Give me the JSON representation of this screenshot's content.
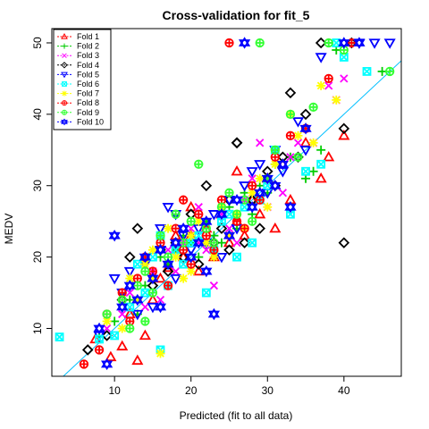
{
  "chart_data": {
    "type": "scatter",
    "title": "Cross-validation for fit_5",
    "xlabel": "Predicted (fit to all data)",
    "ylabel": "MEDV",
    "xlim": [
      1.8,
      47.5
    ],
    "ylim": [
      3.3,
      52.0
    ],
    "xticks": [
      10,
      20,
      30,
      40
    ],
    "yticks": [
      10,
      20,
      30,
      40,
      50
    ],
    "grid": false,
    "legend_position": "top-left",
    "reference_line": {
      "x": [
        1.8,
        47.5
      ],
      "y": [
        1.8,
        47.5
      ],
      "color": "#00BFFF"
    },
    "series": [
      {
        "name": "Fold 1",
        "color": "#FF0000",
        "marker": "triangle",
        "points": [
          [
            7.5,
            8.5
          ],
          [
            9.5,
            6.0
          ],
          [
            11,
            7.5
          ],
          [
            12,
            12
          ],
          [
            13,
            5.5
          ],
          [
            14,
            9.0
          ],
          [
            15,
            14
          ],
          [
            16,
            17
          ],
          [
            17,
            18.5
          ],
          [
            18,
            21
          ],
          [
            19,
            20
          ],
          [
            20,
            23
          ],
          [
            21,
            18
          ],
          [
            22,
            24
          ],
          [
            23,
            20
          ],
          [
            24,
            26
          ],
          [
            25,
            22
          ],
          [
            26,
            25
          ],
          [
            27,
            23
          ],
          [
            28,
            28
          ],
          [
            29,
            26
          ],
          [
            30,
            31
          ],
          [
            31,
            24
          ],
          [
            32,
            33
          ],
          [
            33,
            28
          ],
          [
            35,
            36
          ],
          [
            37,
            31
          ],
          [
            38,
            34
          ],
          [
            40,
            37
          ],
          [
            26,
            32
          ],
          [
            20,
            27
          ],
          [
            18,
            23
          ]
        ]
      },
      {
        "name": "Fold 2",
        "color": "#00CC00",
        "marker": "plus",
        "points": [
          [
            8,
            9
          ],
          [
            10,
            11
          ],
          [
            12,
            14
          ],
          [
            13,
            12
          ],
          [
            14,
            16
          ],
          [
            15,
            17
          ],
          [
            16,
            20
          ],
          [
            17,
            19
          ],
          [
            18,
            21
          ],
          [
            19,
            23
          ],
          [
            20,
            22
          ],
          [
            21,
            20
          ],
          [
            22,
            25
          ],
          [
            23,
            23
          ],
          [
            24,
            22
          ],
          [
            25,
            27
          ],
          [
            26,
            24
          ],
          [
            27,
            29
          ],
          [
            28,
            26
          ],
          [
            29,
            30
          ],
          [
            30,
            29
          ],
          [
            31,
            33
          ],
          [
            33,
            34
          ],
          [
            35,
            31
          ],
          [
            36,
            32
          ],
          [
            38,
            50
          ],
          [
            39,
            49
          ],
          [
            41,
            50
          ],
          [
            45,
            46
          ],
          [
            37,
            35
          ]
        ]
      },
      {
        "name": "Fold 3",
        "color": "#FF00FF",
        "marker": "cross",
        "points": [
          [
            9,
            10
          ],
          [
            11,
            12
          ],
          [
            12,
            15
          ],
          [
            14,
            13
          ],
          [
            15,
            18
          ],
          [
            16,
            14
          ],
          [
            17,
            21
          ],
          [
            18,
            18
          ],
          [
            19,
            22
          ],
          [
            20,
            24
          ],
          [
            21,
            22
          ],
          [
            22,
            21
          ],
          [
            23,
            16
          ],
          [
            24,
            26
          ],
          [
            25,
            24
          ],
          [
            26,
            22
          ],
          [
            27,
            28
          ],
          [
            28,
            31
          ],
          [
            29,
            36
          ],
          [
            30,
            27
          ],
          [
            32,
            29
          ],
          [
            33,
            34
          ],
          [
            34,
            36
          ],
          [
            36,
            36
          ],
          [
            38,
            44
          ],
          [
            39,
            42
          ],
          [
            40,
            45
          ],
          [
            21,
            27
          ]
        ]
      },
      {
        "name": "Fold 4",
        "color": "#000000",
        "marker": "diamond",
        "points": [
          [
            6.5,
            7
          ],
          [
            9,
            9
          ],
          [
            11,
            14
          ],
          [
            12,
            20
          ],
          [
            13,
            24
          ],
          [
            15,
            16
          ],
          [
            16,
            21
          ],
          [
            17,
            18
          ],
          [
            18,
            22
          ],
          [
            19,
            20
          ],
          [
            20,
            26
          ],
          [
            21,
            19
          ],
          [
            22,
            30
          ],
          [
            23,
            22
          ],
          [
            24,
            24
          ],
          [
            25,
            21
          ],
          [
            26,
            36
          ],
          [
            27,
            22
          ],
          [
            28,
            28
          ],
          [
            29,
            24
          ],
          [
            30,
            32
          ],
          [
            31,
            30
          ],
          [
            32,
            34
          ],
          [
            33,
            43
          ],
          [
            34,
            34
          ],
          [
            35,
            40
          ],
          [
            37,
            50
          ],
          [
            40,
            22
          ],
          [
            40,
            38
          ],
          [
            41,
            50
          ],
          [
            26,
            36
          ],
          [
            25,
            28
          ]
        ]
      },
      {
        "name": "Fold 5",
        "color": "#0000FF",
        "marker": "inv-triangle",
        "points": [
          [
            8,
            9
          ],
          [
            10,
            17
          ],
          [
            11,
            15
          ],
          [
            12,
            18
          ],
          [
            13,
            12
          ],
          [
            14,
            19
          ],
          [
            15,
            13
          ],
          [
            16,
            21
          ],
          [
            17,
            27
          ],
          [
            18,
            26
          ],
          [
            19,
            23
          ],
          [
            20,
            21
          ],
          [
            21,
            24
          ],
          [
            22,
            22
          ],
          [
            23,
            26
          ],
          [
            24,
            20
          ],
          [
            25,
            28
          ],
          [
            26,
            24
          ],
          [
            27,
            30
          ],
          [
            28,
            32
          ],
          [
            29,
            33
          ],
          [
            30,
            29
          ],
          [
            31,
            35
          ],
          [
            32,
            32
          ],
          [
            34,
            39
          ],
          [
            35,
            35
          ],
          [
            37,
            48
          ],
          [
            42,
            50
          ],
          [
            44,
            50
          ],
          [
            46,
            50
          ],
          [
            18,
            17
          ],
          [
            16,
            24
          ]
        ]
      },
      {
        "name": "Fold 6",
        "color": "#00FFFF",
        "marker": "square-x",
        "points": [
          [
            2.8,
            8.8
          ],
          [
            8,
            8.5
          ],
          [
            10,
            9
          ],
          [
            12,
            13
          ],
          [
            13,
            19
          ],
          [
            14,
            15
          ],
          [
            15,
            20
          ],
          [
            16,
            23
          ],
          [
            17,
            16
          ],
          [
            18,
            21
          ],
          [
            19,
            19
          ],
          [
            20,
            22
          ],
          [
            21,
            23
          ],
          [
            22,
            15
          ],
          [
            23,
            21
          ],
          [
            24,
            25
          ],
          [
            25,
            26
          ],
          [
            26,
            20
          ],
          [
            27,
            27
          ],
          [
            28,
            22
          ],
          [
            29,
            28
          ],
          [
            30,
            30
          ],
          [
            31,
            35
          ],
          [
            33,
            26
          ],
          [
            35,
            32
          ],
          [
            37,
            33
          ],
          [
            39,
            50
          ],
          [
            40,
            48
          ],
          [
            43,
            46
          ],
          [
            16,
            7
          ]
        ]
      },
      {
        "name": "Fold 7",
        "color": "#FFFF00",
        "marker": "asterisk",
        "points": [
          [
            9,
            11
          ],
          [
            11,
            10
          ],
          [
            12,
            17
          ],
          [
            13,
            14
          ],
          [
            14,
            19
          ],
          [
            15,
            21
          ],
          [
            16,
            6.5
          ],
          [
            17,
            24
          ],
          [
            18,
            20
          ],
          [
            19,
            17
          ],
          [
            20,
            23
          ],
          [
            21,
            25
          ],
          [
            22,
            22
          ],
          [
            23,
            20
          ],
          [
            24,
            27
          ],
          [
            25,
            23
          ],
          [
            26,
            26
          ],
          [
            27,
            24
          ],
          [
            28,
            29
          ],
          [
            29,
            31
          ],
          [
            30,
            27
          ],
          [
            31,
            33
          ],
          [
            33,
            40
          ],
          [
            34,
            37
          ],
          [
            36,
            36
          ],
          [
            37,
            44
          ],
          [
            39,
            42
          ],
          [
            15,
            17
          ],
          [
            20,
            18
          ]
        ]
      },
      {
        "name": "Fold 8",
        "color": "#FF0000",
        "marker": "circle-plus",
        "points": [
          [
            6,
            5
          ],
          [
            8,
            7
          ],
          [
            9,
            12
          ],
          [
            11,
            15
          ],
          [
            12,
            11
          ],
          [
            13,
            17
          ],
          [
            14,
            20
          ],
          [
            15,
            18
          ],
          [
            16,
            22
          ],
          [
            17,
            16
          ],
          [
            18,
            24
          ],
          [
            19,
            21
          ],
          [
            20,
            19
          ],
          [
            21,
            26
          ],
          [
            22,
            23
          ],
          [
            23,
            21
          ],
          [
            24,
            28
          ],
          [
            25,
            50
          ],
          [
            26,
            25
          ],
          [
            27,
            24
          ],
          [
            28,
            30
          ],
          [
            29,
            28
          ],
          [
            30,
            31
          ],
          [
            31,
            34
          ],
          [
            33,
            37
          ],
          [
            35,
            38
          ],
          [
            38,
            45
          ],
          [
            41,
            50
          ],
          [
            19,
            28
          ]
        ]
      },
      {
        "name": "Fold 9",
        "color": "#33FF33",
        "marker": "circle-plus",
        "points": [
          [
            9,
            12
          ],
          [
            11,
            14
          ],
          [
            12,
            10
          ],
          [
            13,
            16
          ],
          [
            14,
            18
          ],
          [
            15,
            15
          ],
          [
            16,
            23
          ],
          [
            17,
            20
          ],
          [
            18,
            26
          ],
          [
            19,
            22
          ],
          [
            20,
            25
          ],
          [
            21,
            33
          ],
          [
            22,
            24
          ],
          [
            23,
            22
          ],
          [
            24,
            27
          ],
          [
            25,
            29
          ],
          [
            26,
            26
          ],
          [
            27,
            28
          ],
          [
            28,
            25
          ],
          [
            29,
            50
          ],
          [
            30,
            31
          ],
          [
            31,
            35
          ],
          [
            33,
            40
          ],
          [
            34,
            34
          ],
          [
            36,
            41
          ],
          [
            38,
            50
          ],
          [
            40,
            49
          ],
          [
            46,
            46
          ],
          [
            14,
            11
          ]
        ]
      },
      {
        "name": "Fold 10",
        "color": "#0000FF",
        "marker": "star-of-david",
        "points": [
          [
            8,
            10
          ],
          [
            9,
            5
          ],
          [
            10,
            23
          ],
          [
            11,
            13
          ],
          [
            12,
            16
          ],
          [
            13,
            14
          ],
          [
            14,
            20
          ],
          [
            15,
            17
          ],
          [
            16,
            21
          ],
          [
            17,
            19
          ],
          [
            18,
            22
          ],
          [
            19,
            24
          ],
          [
            20,
            20
          ],
          [
            21,
            22
          ],
          [
            22,
            25
          ],
          [
            23,
            12
          ],
          [
            24,
            26
          ],
          [
            25,
            23
          ],
          [
            26,
            28
          ],
          [
            27,
            50
          ],
          [
            28,
            27
          ],
          [
            29,
            29
          ],
          [
            30,
            31
          ],
          [
            31,
            30
          ],
          [
            32,
            33
          ],
          [
            33,
            27
          ],
          [
            35,
            38
          ],
          [
            40,
            50
          ],
          [
            42,
            50
          ],
          [
            16,
            13
          ],
          [
            22,
            18
          ]
        ]
      }
    ]
  }
}
